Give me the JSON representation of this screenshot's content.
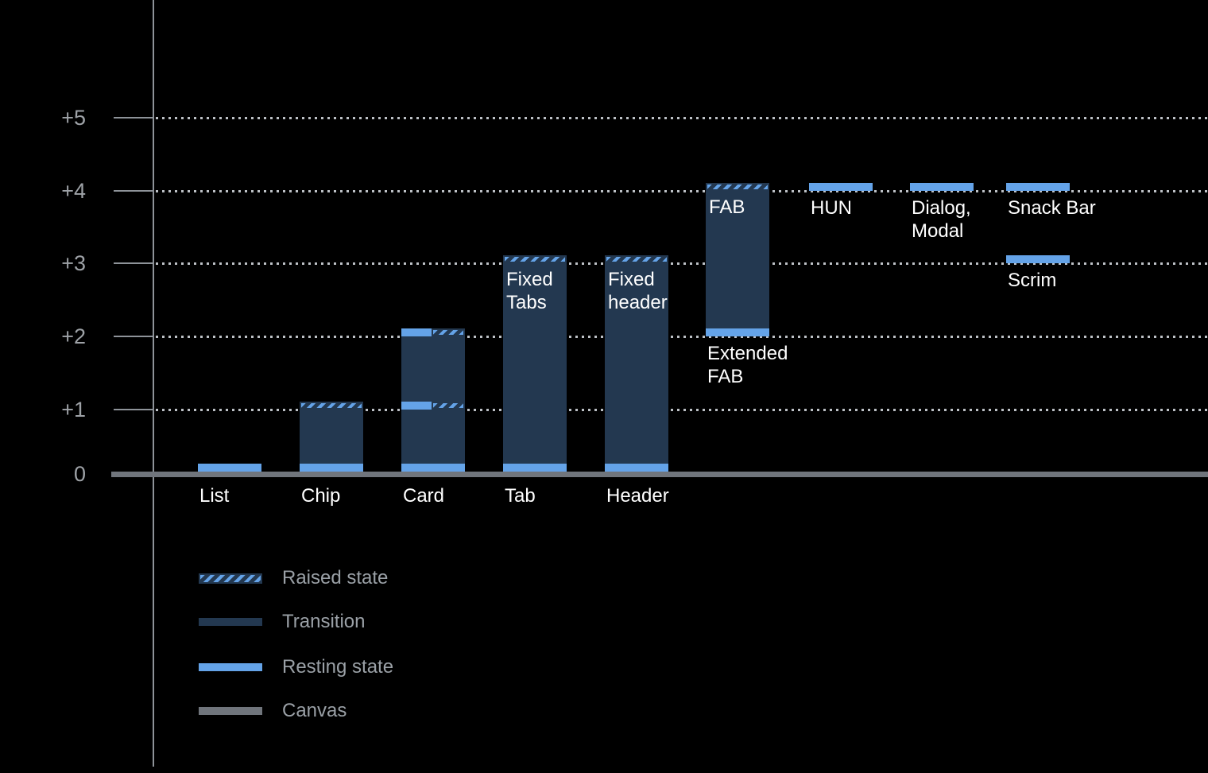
{
  "chart_data": {
    "type": "bar",
    "description": "Material elevation diagram: resting/raised elevation states of UI components above the canvas",
    "y_axis": {
      "tick_labels": [
        "0",
        "+1",
        "+2",
        "+3",
        "+4",
        "+5"
      ],
      "min": 0,
      "max": 5,
      "gridlines": "dotted"
    },
    "bars": [
      {
        "col": 0,
        "axis_label": "List",
        "transition": null,
        "bands": [
          {
            "level": 0,
            "style": "resting"
          }
        ]
      },
      {
        "col": 1,
        "axis_label": "Chip",
        "transition": [
          0,
          1
        ],
        "bands": [
          {
            "level": 0,
            "style": "resting"
          },
          {
            "level": 1,
            "style": "raised"
          }
        ]
      },
      {
        "col": 2,
        "axis_label": "Card",
        "transition": [
          0,
          2
        ],
        "bands": [
          {
            "level": 0,
            "style": "resting"
          },
          {
            "level": 1,
            "style": "split"
          },
          {
            "level": 2,
            "style": "split"
          }
        ]
      },
      {
        "col": 3,
        "axis_label": "Tab",
        "transition": [
          0,
          3
        ],
        "bands": [
          {
            "level": 0,
            "style": "resting"
          },
          {
            "level": 3,
            "style": "raised"
          }
        ],
        "inner_label": {
          "lines": [
            "Fixed",
            "Tabs"
          ],
          "level": 3
        }
      },
      {
        "col": 4,
        "axis_label": "Header",
        "transition": [
          0,
          3
        ],
        "bands": [
          {
            "level": 0,
            "style": "resting"
          },
          {
            "level": 3,
            "style": "raised"
          }
        ],
        "inner_label": {
          "lines": [
            "Fixed",
            "header"
          ],
          "level": 3
        }
      },
      {
        "col": 5,
        "transition": [
          2,
          4
        ],
        "bands": [
          {
            "level": 2,
            "style": "resting"
          },
          {
            "level": 4,
            "style": "raised"
          }
        ],
        "inner_label": {
          "lines": [
            "FAB"
          ],
          "level": 4
        },
        "below_label": {
          "lines": [
            "Extended",
            "FAB"
          ],
          "level": 2
        }
      },
      {
        "col": 6,
        "transition": null,
        "bands": [
          {
            "level": 4,
            "style": "resting"
          }
        ],
        "below_label": {
          "lines": [
            "HUN"
          ],
          "level": 4
        }
      },
      {
        "col": 7,
        "transition": null,
        "bands": [
          {
            "level": 4,
            "style": "resting"
          }
        ],
        "below_label": {
          "lines": [
            "Dialog,",
            "Modal"
          ],
          "level": 4
        }
      },
      {
        "col": 8,
        "transition": null,
        "bands": [
          {
            "level": 4,
            "style": "resting"
          }
        ],
        "below_label": {
          "lines": [
            "Snack Bar"
          ],
          "level": 4
        }
      },
      {
        "col": 8,
        "transition": null,
        "bands": [
          {
            "level": 3,
            "style": "resting"
          }
        ],
        "below_label": {
          "lines": [
            "Scrim"
          ],
          "level": 3
        }
      }
    ],
    "legend": {
      "position": "bottom-left",
      "items": [
        {
          "style": "raised",
          "label": "Raised state"
        },
        {
          "style": "transition",
          "label": "Transition"
        },
        {
          "style": "resting",
          "label": "Resting state"
        },
        {
          "style": "canvas",
          "label": "Canvas"
        }
      ]
    }
  },
  "colors": {
    "background": "#000000",
    "resting_state": "#64A3E8",
    "transition": "#233850",
    "canvas": "#70757C",
    "grid_dots": "#BDC1C6",
    "axis": "#8E9399",
    "axis_text": "#9EA2A7",
    "bar_text": "#FFFFFF",
    "legend_text": "#9AA0A6"
  }
}
